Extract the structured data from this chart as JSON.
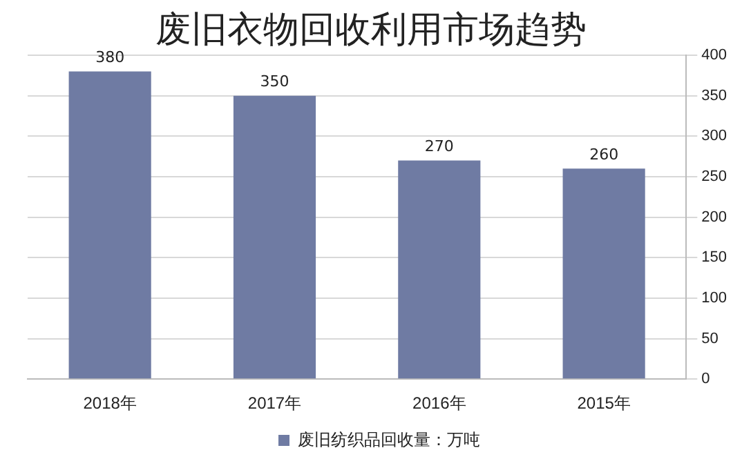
{
  "chart_data": {
    "type": "bar",
    "title": "废旧衣物回收利用市场趋势",
    "categories": [
      "2018年",
      "2017年",
      "2016年",
      "2015年"
    ],
    "series": [
      {
        "name": "废旧纺织品回收量：万吨",
        "color": "#6f7ba3",
        "values": [
          380,
          350,
          270,
          260
        ]
      }
    ],
    "ylim": [
      0,
      400
    ],
    "yticks": [
      0,
      50,
      100,
      150,
      200,
      250,
      300,
      350,
      400
    ],
    "grid": "y",
    "legend": "bottom",
    "data_labels": true
  }
}
